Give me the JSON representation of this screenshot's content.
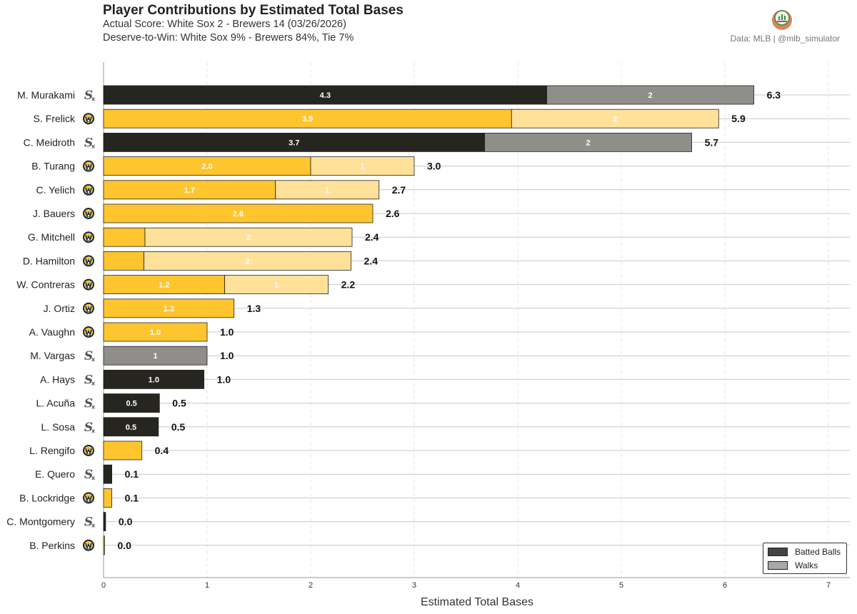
{
  "header": {
    "title": "Player Contributions by Estimated Total Bases",
    "subtitle_line1": "Actual Score: White Sox 2 - Brewers 14  (03/26/2026)",
    "subtitle_line2": "Deserve-to-Win: White Sox 9% - Brewers 84%, Tie 7%",
    "credit": "Data: MLB  |  @mlb_simulator"
  },
  "legend": {
    "items": [
      {
        "label": "Batted Balls",
        "color": "#444444"
      },
      {
        "label": "Walks",
        "color": "#a8a8a8"
      }
    ]
  },
  "colors": {
    "white_sox": {
      "batted": "#27251f",
      "walks": "#8f8e8a",
      "logo_text": "#555555"
    },
    "brewers": {
      "batted": "#ffc52f",
      "walks": "#ffe199",
      "logo_bg": "#ffc52f",
      "logo_fg": "#12284b"
    }
  },
  "chart_data": {
    "type": "bar",
    "orientation": "horizontal",
    "stacked": true,
    "xlabel": "Estimated Total Bases",
    "xlim": [
      0,
      7.2
    ],
    "xticks": [
      0,
      1,
      2,
      3,
      4,
      5,
      6,
      7
    ],
    "grid": "x dashed, horizontal row lines",
    "legend_position": "bottom-right",
    "series": [
      {
        "name": "Batted Balls"
      },
      {
        "name": "Walks"
      }
    ],
    "players": [
      {
        "name": "M. Murakami",
        "team": "white_sox",
        "batted": 4.28,
        "walks": 2,
        "batted_label": "4.3",
        "walks_label": "2",
        "total_label": "6.3"
      },
      {
        "name": "S. Frelick",
        "team": "brewers",
        "batted": 3.94,
        "walks": 2,
        "batted_label": "3.9",
        "walks_label": "2",
        "total_label": "5.9"
      },
      {
        "name": "C. Meidroth",
        "team": "white_sox",
        "batted": 3.68,
        "walks": 2,
        "batted_label": "3.7",
        "walks_label": "2",
        "total_label": "5.7"
      },
      {
        "name": "B. Turang",
        "team": "brewers",
        "batted": 2.0,
        "walks": 1,
        "batted_label": "2.0",
        "walks_label": "1",
        "total_label": "3.0"
      },
      {
        "name": "C. Yelich",
        "team": "brewers",
        "batted": 1.66,
        "walks": 1,
        "batted_label": "1.7",
        "walks_label": "1",
        "total_label": "2.7"
      },
      {
        "name": "J. Bauers",
        "team": "brewers",
        "batted": 2.6,
        "walks": 0,
        "batted_label": "2.6",
        "walks_label": "",
        "total_label": "2.6"
      },
      {
        "name": "G. Mitchell",
        "team": "brewers",
        "batted": 0.4,
        "walks": 2,
        "batted_label": "",
        "walks_label": "2",
        "total_label": "2.4"
      },
      {
        "name": "D. Hamilton",
        "team": "brewers",
        "batted": 0.39,
        "walks": 2,
        "batted_label": "",
        "walks_label": "2",
        "total_label": "2.4"
      },
      {
        "name": "W. Contreras",
        "team": "brewers",
        "batted": 1.17,
        "walks": 1,
        "batted_label": "1.2",
        "walks_label": "1",
        "total_label": "2.2"
      },
      {
        "name": "J. Ortiz",
        "team": "brewers",
        "batted": 1.26,
        "walks": 0,
        "batted_label": "1.3",
        "walks_label": "",
        "total_label": "1.3"
      },
      {
        "name": "A. Vaughn",
        "team": "brewers",
        "batted": 1.0,
        "walks": 0,
        "batted_label": "1.0",
        "walks_label": "",
        "total_label": "1.0"
      },
      {
        "name": "M. Vargas",
        "team": "white_sox",
        "batted": 0,
        "walks": 1,
        "batted_label": "",
        "walks_label": "1",
        "total_label": "1.0"
      },
      {
        "name": "A. Hays",
        "team": "white_sox",
        "batted": 0.97,
        "walks": 0,
        "batted_label": "1.0",
        "walks_label": "",
        "total_label": "1.0"
      },
      {
        "name": "L. Acuña",
        "team": "white_sox",
        "batted": 0.54,
        "walks": 0,
        "batted_label": "0.5",
        "walks_label": "",
        "total_label": "0.5"
      },
      {
        "name": "L. Sosa",
        "team": "white_sox",
        "batted": 0.53,
        "walks": 0,
        "batted_label": "0.5",
        "walks_label": "",
        "total_label": "0.5"
      },
      {
        "name": "L. Rengifo",
        "team": "brewers",
        "batted": 0.37,
        "walks": 0,
        "batted_label": "",
        "walks_label": "",
        "total_label": "0.4"
      },
      {
        "name": "E. Quero",
        "team": "white_sox",
        "batted": 0.08,
        "walks": 0,
        "batted_label": "",
        "walks_label": "",
        "total_label": "0.1"
      },
      {
        "name": "B. Lockridge",
        "team": "brewers",
        "batted": 0.08,
        "walks": 0,
        "batted_label": "",
        "walks_label": "",
        "total_label": "0.1"
      },
      {
        "name": "C. Montgomery",
        "team": "white_sox",
        "batted": 0.02,
        "walks": 0,
        "batted_label": "",
        "walks_label": "",
        "total_label": "0.0"
      },
      {
        "name": "B. Perkins",
        "team": "brewers",
        "batted": 0.01,
        "walks": 0,
        "batted_label": "",
        "walks_label": "",
        "total_label": "0.0"
      }
    ]
  }
}
